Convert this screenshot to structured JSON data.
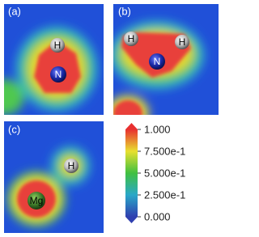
{
  "panels": [
    {
      "label": "(a)",
      "atoms": [
        "H",
        "N"
      ]
    },
    {
      "label": "(b)",
      "atoms": [
        "H",
        "H",
        "N"
      ]
    },
    {
      "label": "(c)",
      "atoms": [
        "H",
        "Mg"
      ]
    }
  ],
  "colorbar": {
    "lim": [
      0,
      1
    ],
    "ticks": [
      {
        "value": 1,
        "label": "1.000"
      },
      {
        "value": 0.75,
        "label": "7.500e-1"
      },
      {
        "value": 0.5,
        "label": "5.000e-1"
      },
      {
        "value": 0.25,
        "label": "2.500e-1"
      },
      {
        "value": 0,
        "label": "0.000"
      }
    ]
  }
}
